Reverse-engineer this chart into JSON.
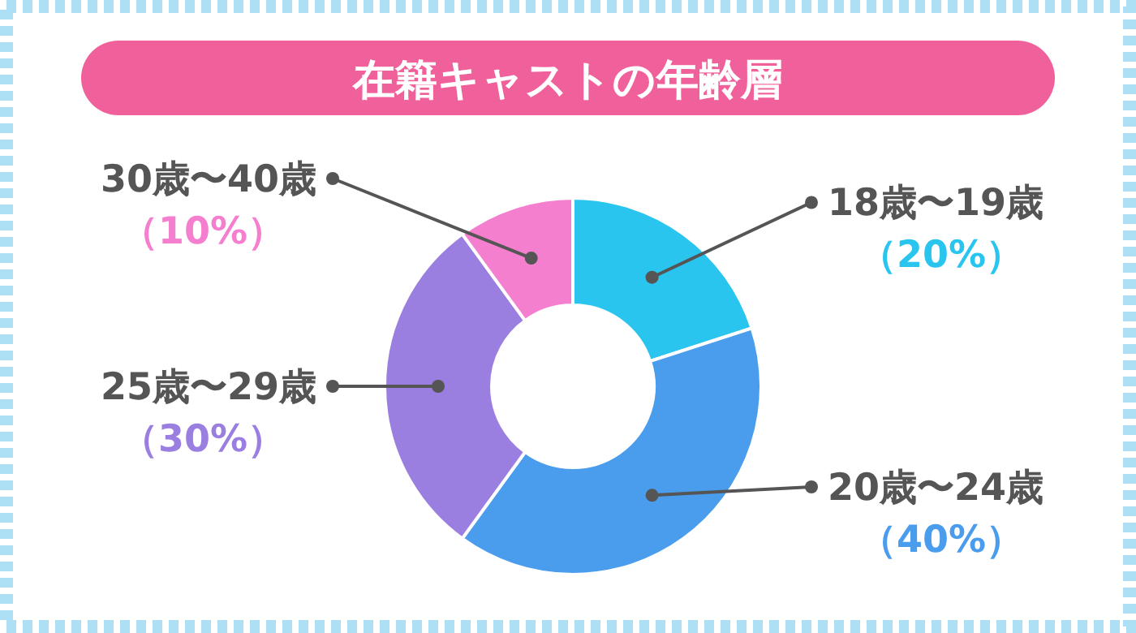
{
  "chart_data": {
    "type": "donut",
    "title": "在籍キャストの年齢層",
    "categories": [
      "18歳〜19歳",
      "20歳〜24歳",
      "25歳〜29歳",
      "30歳〜40歳"
    ],
    "values": [
      20,
      40,
      30,
      10
    ],
    "colors": [
      "#29c5ee",
      "#4a9ded",
      "#9b7fe0",
      "#f57fcf"
    ],
    "value_labels": [
      "（20%）",
      "（40%）",
      "（30%）",
      "（10%）"
    ]
  }
}
